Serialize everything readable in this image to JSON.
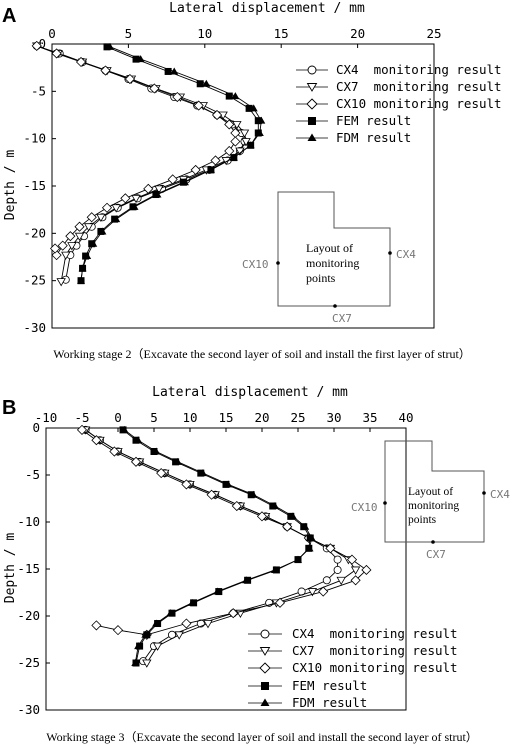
{
  "chart_data": [
    {
      "type": "line",
      "panel_label": "A",
      "title": "",
      "xlabel": "Lateral displacement / mm",
      "ylabel": "Depth / m",
      "xlim": [
        0,
        25
      ],
      "ylim": [
        -30,
        0
      ],
      "x_ticks": [
        "0",
        "5",
        "10",
        "15",
        "20",
        "25"
      ],
      "y_ticks": [
        "0",
        "-5",
        "-10",
        "-15",
        "-20",
        "-25",
        "-30"
      ],
      "caption": "Working stage 2（Excavate the second layer of soil and install the first layer of strut）",
      "legend_position": "top-right",
      "inset": {
        "title_line1": "Layout of",
        "title_line2": "monitoring",
        "title_line3": "points",
        "labels": [
          "CX10",
          "CX4",
          "CX7"
        ]
      },
      "series": [
        {
          "name": "CX4  monitoring result",
          "marker": "circle",
          "x": [
            -1,
            0.5,
            2,
            3.5,
            5,
            6.5,
            8,
            9.5,
            10.8,
            11.8,
            12.4,
            12.6,
            12.3,
            11.5,
            10.3,
            8.8,
            7.2,
            5.6,
            4.3,
            3.3,
            2.6,
            2.1,
            1.6,
            1.2,
            0.9
          ],
          "y": [
            -0.2,
            -1,
            -1.9,
            -2.8,
            -3.7,
            -4.7,
            -5.6,
            -6.5,
            -7.5,
            -8.5,
            -9.4,
            -10.3,
            -11.3,
            -12.3,
            -13.3,
            -14.3,
            -15.3,
            -16.3,
            -17.3,
            -18.3,
            -19.3,
            -20.3,
            -21.3,
            -22.3,
            -24.9
          ]
        },
        {
          "name": "CX7  monitoring result",
          "marker": "triangle-down",
          "x": [
            -1,
            0.4,
            2,
            3.6,
            5.2,
            6.8,
            8.4,
            9.9,
            11.2,
            12.1,
            12.6,
            12.7,
            12.3,
            11.4,
            10.1,
            8.6,
            7,
            5.5,
            4.2,
            3.2,
            2.4,
            1.8,
            1.3,
            0.9,
            0.6
          ],
          "y": [
            -0.2,
            -1,
            -1.9,
            -2.8,
            -3.7,
            -4.7,
            -5.6,
            -6.5,
            -7.5,
            -8.5,
            -9.4,
            -10.3,
            -11.3,
            -12.3,
            -13.3,
            -14.3,
            -15.3,
            -16.3,
            -17.3,
            -18.3,
            -19.3,
            -20.3,
            -21.3,
            -22.3,
            -25.1
          ]
        },
        {
          "name": "CX10 monitoring result",
          "marker": "diamond",
          "x": [
            -1,
            0.3,
            1.9,
            3.5,
            5.1,
            6.7,
            8.2,
            9.6,
            10.8,
            11.6,
            12,
            12,
            11.6,
            10.7,
            9.4,
            7.9,
            6.3,
            4.8,
            3.6,
            2.6,
            1.8,
            1.2,
            0.7,
            0.3,
            0.2
          ],
          "y": [
            -0.2,
            -1,
            -1.9,
            -2.8,
            -3.7,
            -4.7,
            -5.6,
            -6.5,
            -7.5,
            -8.5,
            -9.4,
            -10.3,
            -11.3,
            -12.3,
            -13.3,
            -14.3,
            -15.3,
            -16.3,
            -17.3,
            -18.3,
            -19.3,
            -20.3,
            -21.3,
            -22.3,
            -21.6
          ]
        },
        {
          "name": "FEM result",
          "marker": "square",
          "x": [
            3.6,
            5.5,
            7.6,
            9.7,
            11.6,
            12.9,
            13.5,
            13.5,
            13,
            11.9,
            10.4,
            8.6,
            6.8,
            5.3,
            4.1,
            3.2,
            2.6,
            2.2,
            2,
            1.9
          ],
          "y": [
            -0.3,
            -1.6,
            -2.9,
            -4.2,
            -5.5,
            -6.8,
            -8.1,
            -9.4,
            -10.7,
            -12,
            -13.3,
            -14.6,
            -15.9,
            -17.2,
            -18.5,
            -19.8,
            -21.1,
            -22.4,
            -23.7,
            -25
          ]
        },
        {
          "name": "FDM result",
          "marker": "triangle-up",
          "x": [
            3.8,
            5.8,
            8,
            10.1,
            12,
            13.2,
            13.7,
            13.6,
            13,
            11.9,
            10.4,
            8.7,
            6.9,
            5.4,
            4.2,
            3.3,
            2.7,
            2.3,
            2,
            1.9
          ],
          "y": [
            -0.3,
            -1.6,
            -2.9,
            -4.2,
            -5.5,
            -6.8,
            -8.1,
            -9.4,
            -10.7,
            -12,
            -13.3,
            -14.6,
            -15.9,
            -17.2,
            -18.5,
            -19.8,
            -21.1,
            -22.4,
            -23.7,
            -25
          ]
        }
      ]
    },
    {
      "type": "line",
      "panel_label": "B",
      "title": "",
      "xlabel": "Lateral displacement / mm",
      "ylabel": "Depth / m",
      "xlim": [
        -10,
        40
      ],
      "ylim": [
        -30,
        0
      ],
      "x_ticks": [
        "-10",
        "-5",
        "0",
        "5",
        "10",
        "15",
        "20",
        "25",
        "30",
        "35",
        "40"
      ],
      "y_ticks": [
        "0",
        "-5",
        "-10",
        "-15",
        "-20",
        "-25",
        "-30"
      ],
      "caption": "Working stage 3（Excavate the second layer of soil and install the second layer of strut）",
      "legend_position": "bottom-right",
      "inset": {
        "title_line1": "Layout of",
        "title_line2": "monitoring",
        "title_line3": "points",
        "labels": [
          "CX10",
          "CX4",
          "CX7"
        ]
      },
      "series": [
        {
          "name": "CX4  monitoring result",
          "marker": "circle",
          "x": [
            -4.5,
            -2.5,
            0,
            3,
            6.5,
            10,
            13.5,
            17,
            20.5,
            23.5,
            26.5,
            29,
            30.5,
            30.5,
            29,
            25.5,
            21,
            16,
            11.5,
            7.5,
            5,
            3.5
          ],
          "y": [
            -0.2,
            -1.3,
            -2.5,
            -3.6,
            -4.8,
            -6,
            -7.1,
            -8.3,
            -9.4,
            -10.5,
            -11.7,
            -12.8,
            -14,
            -15.1,
            -16.2,
            -17.4,
            -18.6,
            -19.7,
            -20.8,
            -22,
            -23.2,
            -24.8
          ]
        },
        {
          "name": "CX7  monitoring result",
          "marker": "triangle-down",
          "x": [
            -4.5,
            -2.5,
            0,
            3,
            6.5,
            10,
            13.5,
            17,
            20.5,
            23.5,
            26.5,
            29.5,
            32,
            33,
            31,
            27,
            22,
            17,
            12.5,
            8.5,
            5.5,
            4
          ],
          "y": [
            -0.2,
            -1.3,
            -2.5,
            -3.6,
            -4.8,
            -6,
            -7.1,
            -8.3,
            -9.4,
            -10.5,
            -11.7,
            -12.8,
            -14,
            -15.1,
            -16.2,
            -17.4,
            -18.6,
            -19.7,
            -20.8,
            -22,
            -23.2,
            -25
          ]
        },
        {
          "name": "CX10 monitoring result",
          "marker": "diamond",
          "x": [
            -5,
            -3,
            -0.5,
            2.5,
            6,
            9.5,
            13,
            16.5,
            20,
            23.5,
            26.5,
            29.5,
            32.5,
            34.5,
            33,
            28.5,
            22.5,
            16,
            9.5,
            4,
            0,
            -3
          ],
          "y": [
            -0.2,
            -1.3,
            -2.5,
            -3.6,
            -4.8,
            -6,
            -7.1,
            -8.3,
            -9.4,
            -10.5,
            -11.7,
            -12.8,
            -14,
            -15.1,
            -16.2,
            -17.4,
            -18.6,
            -19.7,
            -20.8,
            -22,
            -21.5,
            -21
          ]
        },
        {
          "name": "FEM result",
          "marker": "square",
          "x": [
            0.7,
            2.5,
            5,
            8,
            11.5,
            15,
            18.5,
            21.5,
            24,
            25.8,
            26.7,
            26.5,
            25,
            22,
            18,
            14,
            10.5,
            7.5,
            5.5,
            4,
            3,
            2.5
          ],
          "y": [
            -0.2,
            -1.3,
            -2.5,
            -3.6,
            -4.8,
            -6,
            -7.1,
            -8.3,
            -9.4,
            -10.5,
            -11.7,
            -12.8,
            -14,
            -15.1,
            -16.2,
            -17.4,
            -18.6,
            -19.7,
            -20.8,
            -22,
            -23.2,
            -25
          ]
        },
        {
          "name": "FDM result",
          "marker": "triangle-up",
          "x": [
            0.9,
            2.8,
            5.3,
            8.3,
            11.8,
            15.3,
            18.8,
            21.8,
            24.3,
            26,
            26.9,
            26.6,
            25,
            21.8,
            17.8,
            13.8,
            10.3,
            7.3,
            5.3,
            3.8,
            2.8,
            2.4
          ],
          "y": [
            -0.2,
            -1.3,
            -2.5,
            -3.6,
            -4.8,
            -6,
            -7.1,
            -8.3,
            -9.4,
            -10.5,
            -11.7,
            -12.8,
            -14,
            -15.1,
            -16.2,
            -17.4,
            -18.6,
            -19.7,
            -20.8,
            -22,
            -23.2,
            -25
          ]
        }
      ]
    }
  ]
}
